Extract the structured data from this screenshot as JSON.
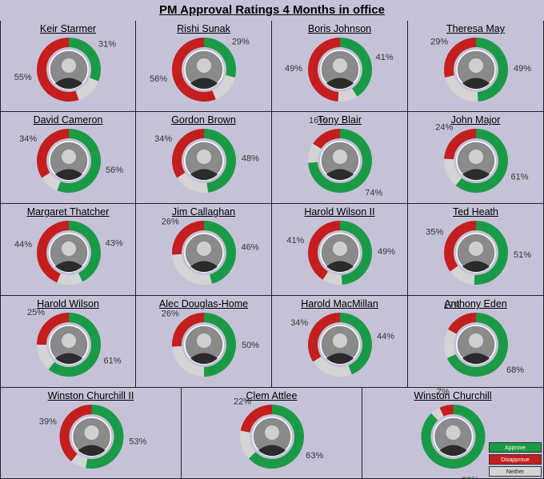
{
  "chart_data": {
    "type": "donut",
    "title": "PM Approval Ratings 4 Months in office",
    "series_names": [
      "Approve",
      "Disapprove",
      "Neither"
    ],
    "colors": {
      "approve": "#1a9a46",
      "disapprove": "#c41e1e",
      "neither": "#d4d4d4"
    },
    "legend": {
      "position": "bottom-right",
      "items": [
        "Approve",
        "Disapprove",
        "Neither"
      ]
    },
    "charts": [
      {
        "name": "Keir Starmer",
        "approve": 31,
        "disapprove": 55,
        "neither": 14
      },
      {
        "name": "Rishi Sunak",
        "approve": 29,
        "disapprove": 56,
        "neither": 15
      },
      {
        "name": "Boris Johnson",
        "approve": 41,
        "disapprove": 49,
        "neither": 10
      },
      {
        "name": "Theresa May",
        "approve": 49,
        "disapprove": 29,
        "neither": 22
      },
      {
        "name": "David Cameron",
        "approve": 56,
        "disapprove": 34,
        "neither": 10
      },
      {
        "name": "Gordon Brown",
        "approve": 48,
        "disapprove": 34,
        "neither": 18
      },
      {
        "name": "Tony Blair",
        "approve": 74,
        "disapprove": 16,
        "neither": 10
      },
      {
        "name": "John Major",
        "approve": 61,
        "disapprove": 24,
        "neither": 15
      },
      {
        "name": "Margaret Thatcher",
        "approve": 43,
        "disapprove": 44,
        "neither": 13
      },
      {
        "name": "Jim Callaghan",
        "approve": 46,
        "disapprove": 26,
        "neither": 28
      },
      {
        "name": "Harold Wilson II",
        "approve": 49,
        "disapprove": 41,
        "neither": 10
      },
      {
        "name": "Ted Heath",
        "approve": 51,
        "disapprove": 35,
        "neither": 14
      },
      {
        "name": "Harold Wilson",
        "approve": 61,
        "disapprove": 25,
        "neither": 14
      },
      {
        "name": "Alec Douglas-Home",
        "approve": 50,
        "disapprove": 26,
        "neither": 24
      },
      {
        "name": "Harold MacMillan",
        "approve": 44,
        "disapprove": 34,
        "neither": 22
      },
      {
        "name": "Anthony Eden",
        "approve": 68,
        "disapprove": 17,
        "neither": 15
      },
      {
        "name": "Winston Churchill II",
        "approve": 53,
        "disapprove": 39,
        "neither": 8
      },
      {
        "name": "Clem Attlee",
        "approve": 63,
        "disapprove": 22,
        "neither": 15
      },
      {
        "name": "Winston Churchill",
        "approve": 88,
        "disapprove": 7,
        "neither": 5
      }
    ]
  }
}
